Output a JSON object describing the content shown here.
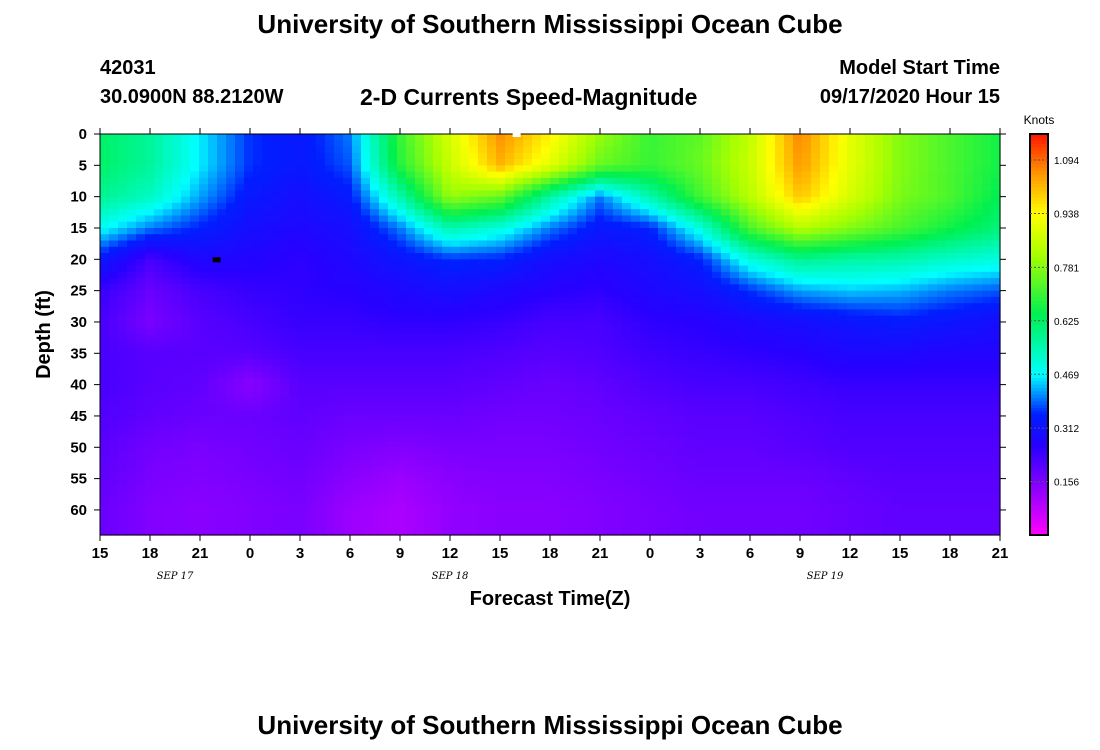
{
  "header": {
    "title": "University of Southern Mississippi Ocean Cube",
    "station_id": "42031",
    "location": "30.0900N 88.2120W",
    "subtitle": "2-D Currents Speed-Magnitude",
    "model_label": "Model Start Time",
    "model_time": "09/17/2020 Hour 15"
  },
  "footer": {
    "title": "University of Southern Mississippi Ocean Cube"
  },
  "chart_data": {
    "type": "heatmap",
    "title": "2-D Currents Speed-Magnitude",
    "xlabel": "Forecast Time(Z)",
    "ylabel": "Depth (ft)",
    "x_hours": [
      0,
      3,
      6,
      9,
      12,
      15,
      18,
      21,
      24,
      27,
      30,
      33,
      36,
      39,
      42,
      45,
      48,
      51,
      54
    ],
    "x_tick_labels": [
      "15",
      "18",
      "21",
      "0",
      "3",
      "6",
      "9",
      "12",
      "15",
      "18",
      "21",
      "0",
      "3",
      "6",
      "9",
      "12",
      "15",
      "18",
      "21"
    ],
    "date_labels": [
      {
        "hour": 4.5,
        "label": "SEP 17"
      },
      {
        "hour": 21,
        "label": "SEP 18"
      },
      {
        "hour": 43.5,
        "label": "SEP 19"
      }
    ],
    "y_ticks": [
      0,
      5,
      10,
      15,
      20,
      25,
      30,
      35,
      40,
      45,
      50,
      55,
      60
    ],
    "y_range": [
      0,
      64
    ],
    "colorbar": {
      "label": "Knots",
      "range": [
        0.0,
        1.17
      ],
      "ticks": [
        0.156,
        0.312,
        0.469,
        0.625,
        0.781,
        0.938,
        1.094
      ],
      "tick_labels": [
        "0.156",
        "0.312",
        "0.469",
        "0.625",
        "0.781",
        "0.938",
        "1.094"
      ]
    },
    "grid_depths": [
      0,
      5,
      10,
      15,
      20,
      25,
      30,
      35,
      40,
      45,
      50,
      55,
      60,
      64
    ],
    "grid_hours": [
      0,
      3,
      6,
      9,
      12,
      15,
      18,
      21,
      24,
      27,
      30,
      33,
      36,
      39,
      42,
      45,
      48,
      51,
      54
    ],
    "speed_knots": [
      [
        0.62,
        0.57,
        0.46,
        0.36,
        0.33,
        0.4,
        0.7,
        0.88,
        1.06,
        0.95,
        0.8,
        0.7,
        0.74,
        0.85,
        1.07,
        0.9,
        0.78,
        0.72,
        0.66
      ],
      [
        0.62,
        0.57,
        0.46,
        0.36,
        0.33,
        0.38,
        0.68,
        0.86,
        1.02,
        0.9,
        0.75,
        0.7,
        0.75,
        0.86,
        1.05,
        0.9,
        0.78,
        0.72,
        0.66
      ],
      [
        0.58,
        0.53,
        0.42,
        0.33,
        0.3,
        0.34,
        0.55,
        0.8,
        0.75,
        0.56,
        0.4,
        0.55,
        0.71,
        0.84,
        1.0,
        0.88,
        0.77,
        0.72,
        0.64
      ],
      [
        0.48,
        0.4,
        0.35,
        0.3,
        0.28,
        0.3,
        0.4,
        0.55,
        0.5,
        0.4,
        0.33,
        0.35,
        0.5,
        0.72,
        0.84,
        0.78,
        0.72,
        0.66,
        0.6
      ],
      [
        0.33,
        0.22,
        0.28,
        0.27,
        0.25,
        0.28,
        0.32,
        0.36,
        0.35,
        0.3,
        0.28,
        0.3,
        0.35,
        0.5,
        0.58,
        0.56,
        0.55,
        0.52,
        0.5
      ],
      [
        0.24,
        0.18,
        0.22,
        0.24,
        0.25,
        0.26,
        0.28,
        0.3,
        0.28,
        0.26,
        0.25,
        0.28,
        0.3,
        0.36,
        0.42,
        0.44,
        0.43,
        0.4,
        0.38
      ],
      [
        0.22,
        0.16,
        0.2,
        0.22,
        0.24,
        0.24,
        0.25,
        0.25,
        0.24,
        0.22,
        0.22,
        0.25,
        0.26,
        0.28,
        0.3,
        0.32,
        0.34,
        0.32,
        0.3
      ],
      [
        0.22,
        0.2,
        0.2,
        0.2,
        0.22,
        0.22,
        0.22,
        0.22,
        0.21,
        0.2,
        0.21,
        0.23,
        0.24,
        0.25,
        0.26,
        0.28,
        0.28,
        0.27,
        0.27
      ],
      [
        0.22,
        0.2,
        0.19,
        0.14,
        0.2,
        0.2,
        0.2,
        0.2,
        0.19,
        0.18,
        0.19,
        0.21,
        0.22,
        0.22,
        0.23,
        0.24,
        0.24,
        0.24,
        0.24
      ],
      [
        0.21,
        0.19,
        0.18,
        0.18,
        0.19,
        0.18,
        0.18,
        0.18,
        0.17,
        0.17,
        0.18,
        0.19,
        0.2,
        0.2,
        0.21,
        0.22,
        0.22,
        0.22,
        0.22
      ],
      [
        0.2,
        0.17,
        0.16,
        0.17,
        0.18,
        0.16,
        0.15,
        0.16,
        0.16,
        0.16,
        0.17,
        0.18,
        0.19,
        0.19,
        0.2,
        0.21,
        0.21,
        0.21,
        0.21
      ],
      [
        0.19,
        0.16,
        0.15,
        0.16,
        0.17,
        0.14,
        0.12,
        0.14,
        0.15,
        0.15,
        0.16,
        0.17,
        0.18,
        0.18,
        0.18,
        0.19,
        0.2,
        0.2,
        0.2
      ],
      [
        0.18,
        0.15,
        0.14,
        0.15,
        0.16,
        0.12,
        0.1,
        0.13,
        0.14,
        0.14,
        0.15,
        0.16,
        0.17,
        0.17,
        0.17,
        0.18,
        0.19,
        0.19,
        0.19
      ],
      [
        0.18,
        0.15,
        0.14,
        0.15,
        0.16,
        0.12,
        0.1,
        0.13,
        0.14,
        0.14,
        0.15,
        0.16,
        0.17,
        0.17,
        0.17,
        0.18,
        0.19,
        0.19,
        0.19
      ]
    ],
    "markers": [
      {
        "hour": 7,
        "depth": 20,
        "color": "#000000",
        "label": "max-marker"
      },
      {
        "hour": 25,
        "depth": 0,
        "color": "#ffffff",
        "label": "surface-marker"
      }
    ]
  }
}
